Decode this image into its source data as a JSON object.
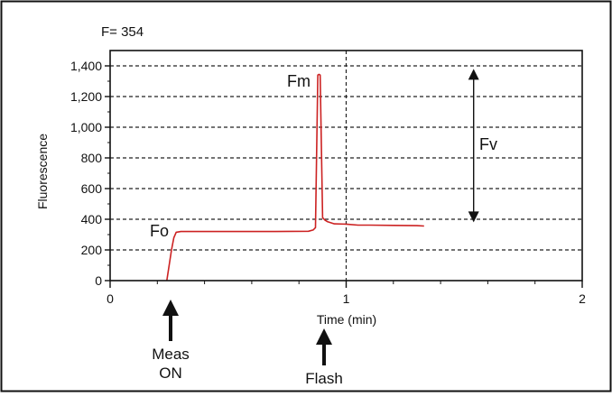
{
  "readout": "F= 354",
  "chart_data": {
    "type": "line",
    "title": "",
    "xlabel": "Time (min)",
    "ylabel": "Fluorescence",
    "xlim": [
      0,
      2
    ],
    "ylim": [
      0,
      1500
    ],
    "x_ticks": [
      0,
      1,
      2
    ],
    "x_tick_labels": [
      "0",
      "1",
      "2"
    ],
    "y_ticks": [
      0,
      200,
      400,
      600,
      800,
      1000,
      1200,
      1400
    ],
    "y_tick_labels": [
      "0",
      "200",
      "400",
      "600",
      "800",
      "1,000",
      "1,200",
      "1,400"
    ],
    "grid": "dashed horizontal lines at y ticks; dashed vertical line at x = 1",
    "series": [
      {
        "color": "#cc2222",
        "x": [
          0.24,
          0.25,
          0.26,
          0.27,
          0.28,
          0.3,
          0.35,
          0.5,
          0.7,
          0.84,
          0.86,
          0.87,
          0.88,
          0.885,
          0.89,
          0.9,
          0.91,
          0.92,
          0.95,
          1.0,
          1.05,
          1.1,
          1.2,
          1.3,
          1.33
        ],
        "y": [
          0,
          100,
          200,
          280,
          315,
          320,
          320,
          320,
          320,
          322,
          330,
          345,
          1340,
          1345,
          1340,
          410,
          395,
          385,
          370,
          368,
          362,
          362,
          360,
          358,
          356
        ]
      }
    ],
    "annotations": [
      {
        "text": "Fo",
        "x": 0.2,
        "y": 400
      },
      {
        "text": "Fm",
        "x": 0.82,
        "y": 1330
      },
      {
        "text": "Fv",
        "x": 1.6,
        "y": 1100
      },
      {
        "text": "Meas",
        "x": 0.25,
        "note": "below axis with upward arrow"
      },
      {
        "text": "ON",
        "x": 0.25,
        "note": "below axis"
      },
      {
        "text": "Flash",
        "x": 0.9,
        "note": "below axis with upward arrow"
      }
    ],
    "fv_arrow": {
      "x": 1.54,
      "y_from": 380,
      "y_to": 1380
    }
  }
}
